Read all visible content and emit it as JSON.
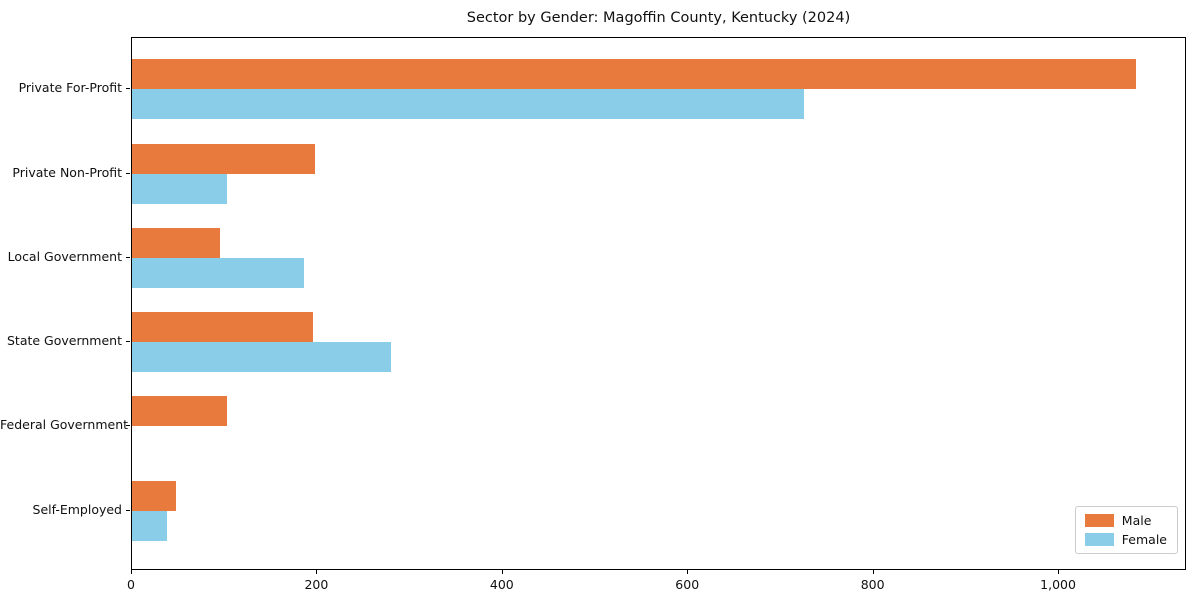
{
  "figure": {
    "title": "Sector by Gender: Magoffin County, Kentucky (2024)"
  },
  "chart_data": {
    "type": "bar",
    "orientation": "horizontal",
    "title": "Sector by Gender: Magoffin County, Kentucky (2024)",
    "xlabel": "",
    "ylabel": "",
    "categories": [
      "Private For-Profit",
      "Private Non-Profit",
      "Local Government",
      "State Government",
      "Federal Government",
      "Self-Employed"
    ],
    "series": [
      {
        "name": "Male",
        "color": "#e87a3d",
        "values": [
          1083,
          197,
          95,
          195,
          102,
          47
        ]
      },
      {
        "name": "Female",
        "color": "#89cde8",
        "values": [
          725,
          103,
          185,
          279,
          0,
          38
        ]
      }
    ],
    "xlim": [
      0,
      1138
    ],
    "xticks": [
      0,
      200,
      400,
      600,
      800,
      1000
    ],
    "xtick_labels": [
      "0",
      "200",
      "400",
      "600",
      "800",
      "1,000"
    ],
    "grid": false,
    "legend": {
      "position": "lower right",
      "entries": [
        "Male",
        "Female"
      ]
    }
  }
}
